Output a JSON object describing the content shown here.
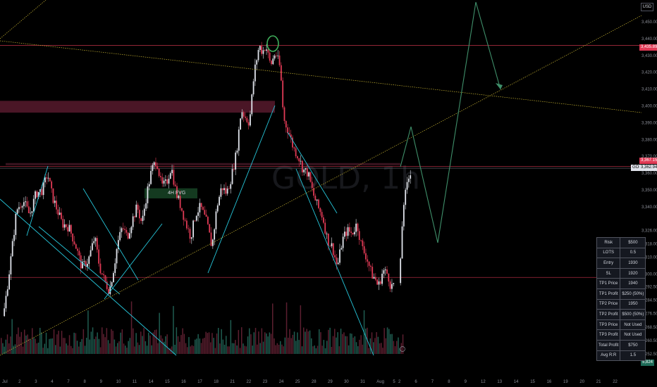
{
  "header": {
    "currency": "USD",
    "symbol_tag": "GOLD",
    "watermark": "GOLD, 1h"
  },
  "colors": {
    "background": "#000000",
    "up_candle": "#e0e3eb",
    "down_candle": "#e03a55",
    "trendline": "#26c6da",
    "projection": "#3f8f6a",
    "dotted": "#c8b432",
    "resistance": "#e03a55",
    "zone": "#4a1626",
    "fvg": "#143a20",
    "circle": "#3fae5a"
  },
  "chart_data": {
    "type": "candlestick",
    "title": "GOLD, 1h",
    "xlabel": "",
    "ylabel": "",
    "ylim": [
      3248,
      3465
    ],
    "y_ticks": [
      "3,450.00",
      "3,440.00",
      "3,430.00",
      "3,420.00",
      "3,410.00",
      "3,400.00",
      "3,390.00",
      "3,380.00",
      "3,370.00",
      "3,360.00",
      "3,350.00",
      "3,340.00",
      "3,326.00",
      "3,318.00",
      "3,310.00",
      "3,300.00",
      "3,292.50",
      "3,284.50",
      "3,276.50",
      "3,268.50",
      "3,260.50",
      "3,252.50"
    ],
    "y_tick_values": [
      3450,
      3440,
      3430,
      3420,
      3410,
      3400,
      3390,
      3380,
      3370,
      3360,
      3350,
      3340,
      3326,
      3318,
      3310,
      3300,
      3292.5,
      3284.5,
      3276.5,
      3268.5,
      3260.5,
      3252.5
    ],
    "x_ticks": [
      "Jul",
      "2",
      "3",
      "4",
      "7",
      "8",
      "9",
      "10",
      "11",
      "14",
      "15",
      "16",
      "17",
      "18",
      "21",
      "22",
      "23",
      "24",
      "25",
      "28",
      "29",
      "30",
      "31",
      "Aug",
      "5",
      "6",
      "7",
      "8",
      "9",
      "12",
      "13",
      "14",
      "15",
      "16",
      "19",
      "20",
      "21",
      "22"
    ],
    "x_tick_values": [
      0,
      1,
      2,
      3,
      4,
      5,
      6,
      7,
      8,
      9,
      10,
      11,
      12,
      13,
      14,
      15,
      16,
      17,
      18,
      19,
      20,
      21,
      22,
      23,
      24,
      25,
      26,
      27,
      28,
      29,
      30,
      31,
      32,
      33,
      34,
      35,
      36,
      37
    ],
    "extra_x_label": "2",
    "path": [
      [
        0,
        3275
      ],
      [
        0.4,
        3305
      ],
      [
        0.8,
        3338
      ],
      [
        1.2,
        3344
      ],
      [
        1.6,
        3335
      ],
      [
        2.0,
        3348
      ],
      [
        2.4,
        3350
      ],
      [
        2.7,
        3360
      ],
      [
        3.0,
        3346
      ],
      [
        3.3,
        3338
      ],
      [
        3.6,
        3330
      ],
      [
        4.0,
        3328
      ],
      [
        4.4,
        3318
      ],
      [
        4.8,
        3304
      ],
      [
        5.2,
        3308
      ],
      [
        5.6,
        3322
      ],
      [
        5.9,
        3304
      ],
      [
        6.2,
        3296
      ],
      [
        6.5,
        3290
      ],
      [
        6.8,
        3305
      ],
      [
        7.0,
        3318
      ],
      [
        7.3,
        3328
      ],
      [
        7.6,
        3322
      ],
      [
        7.9,
        3332
      ],
      [
        8.2,
        3340
      ],
      [
        8.5,
        3330
      ],
      [
        8.8,
        3348
      ],
      [
        9.1,
        3362
      ],
      [
        9.4,
        3368
      ],
      [
        9.7,
        3352
      ],
      [
        10.0,
        3354
      ],
      [
        10.3,
        3364
      ],
      [
        10.6,
        3348
      ],
      [
        10.9,
        3340
      ],
      [
        11.2,
        3330
      ],
      [
        11.5,
        3322
      ],
      [
        11.8,
        3336
      ],
      [
        12.1,
        3340
      ],
      [
        12.5,
        3330
      ],
      [
        12.8,
        3316
      ],
      [
        13.1,
        3340
      ],
      [
        13.4,
        3352
      ],
      [
        13.7,
        3348
      ],
      [
        14.0,
        3358
      ],
      [
        14.3,
        3372
      ],
      [
        14.6,
        3398
      ],
      [
        14.8,
        3394
      ],
      [
        15.1,
        3390
      ],
      [
        15.4,
        3420
      ],
      [
        15.7,
        3436
      ],
      [
        15.9,
        3432
      ],
      [
        16.1,
        3436
      ],
      [
        16.4,
        3424
      ],
      [
        16.7,
        3432
      ],
      [
        17.0,
        3422
      ],
      [
        17.2,
        3392
      ],
      [
        17.5,
        3385
      ],
      [
        17.8,
        3375
      ],
      [
        18.1,
        3370
      ],
      [
        18.4,
        3362
      ],
      [
        18.7,
        3360
      ],
      [
        19.0,
        3348
      ],
      [
        19.3,
        3340
      ],
      [
        19.6,
        3334
      ],
      [
        19.9,
        3320
      ],
      [
        20.2,
        3316
      ],
      [
        20.5,
        3304
      ],
      [
        20.8,
        3320
      ],
      [
        21.1,
        3326
      ],
      [
        21.4,
        3324
      ],
      [
        21.7,
        3330
      ],
      [
        22.0,
        3316
      ],
      [
        22.3,
        3310
      ],
      [
        22.6,
        3300
      ],
      [
        22.9,
        3296
      ],
      [
        23.0,
        3292
      ],
      [
        23.3,
        3302
      ],
      [
        23.6,
        3300
      ],
      [
        23.8,
        3292
      ],
      [
        24.0,
        3295
      ],
      [
        24.2,
        3340
      ],
      [
        24.5,
        3355
      ],
      [
        24.7,
        3363
      ]
    ],
    "annotations": {
      "resistance_levels": [
        3436,
        3364,
        3298
      ],
      "fvg_label": "4H FVG",
      "price_tags": [
        "3,435.89",
        "3,367.15",
        "3,362.94",
        "5,824"
      ]
    }
  },
  "info_table": [
    {
      "label": "Risk",
      "value": "$500"
    },
    {
      "label": "LOTS",
      "value": "0.5"
    },
    {
      "label": "Entry",
      "value": "1930"
    },
    {
      "label": "SL",
      "value": "1920"
    },
    {
      "label": "TP1 Price",
      "value": "1940"
    },
    {
      "label": "TP1 Profit",
      "value": "$250 (50%)"
    },
    {
      "label": "TP2 Price",
      "value": "1950"
    },
    {
      "label": "TP2 Profit",
      "value": "$500 (50%)"
    },
    {
      "label": "TP3 Price",
      "value": "Not Used"
    },
    {
      "label": "TP3 Profit",
      "value": "Not Used"
    },
    {
      "label": "Total Profit",
      "value": "$750"
    },
    {
      "label": "Avg R:R",
      "value": "1.5"
    }
  ]
}
